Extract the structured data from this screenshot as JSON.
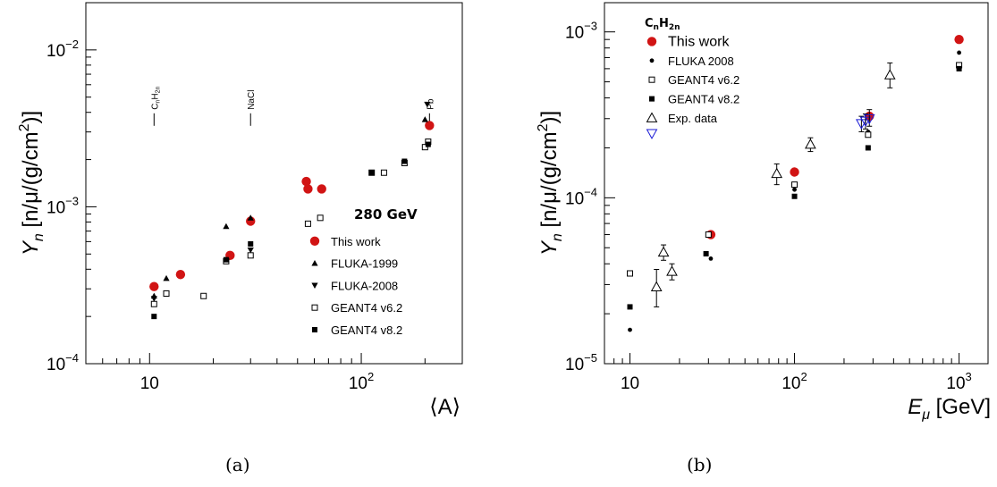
{
  "chart_data": [
    {
      "type": "scatter",
      "panel": "a",
      "caption": "(a)",
      "x_scale": "log",
      "y_scale": "log",
      "xlim": [
        5,
        300
      ],
      "ylim": [
        0.0001,
        0.02
      ],
      "grid": false,
      "xlabel": "⟨A⟩",
      "ylabel": "Y_n [n/μ/(g/cm²)]",
      "ylabel_parts": {
        "Y": "Y",
        "sub": "n",
        "rest": " [n/μ/(g/cm",
        "sup": "2",
        "tail": ")]"
      },
      "x_ticks": [
        {
          "value": 10,
          "label": "10"
        },
        {
          "value": 100,
          "label": "10",
          "exp": "2"
        }
      ],
      "y_ticks": [
        {
          "value": 0.0001,
          "label": "10",
          "exp": "−4"
        },
        {
          "value": 0.001,
          "label": "10",
          "exp": "−3"
        },
        {
          "value": 0.01,
          "label": "10",
          "exp": "−2"
        }
      ],
      "legend": {
        "title": "280 GeV",
        "placement": "lower-right",
        "entries": [
          {
            "label": "This work",
            "marker": "circle-red"
          },
          {
            "label": "FLUKA-1999",
            "marker": "triangle-up"
          },
          {
            "label": "FLUKA-2008",
            "marker": "triangle-down"
          },
          {
            "label": "GEANT4 v6.2",
            "marker": "square-open"
          },
          {
            "label": "GEANT4 v8.2",
            "marker": "square-filled"
          }
        ]
      },
      "annotations": [
        {
          "text": "C",
          "sub": "n",
          "text2": "H",
          "sub2": "2n",
          "x": 10.5,
          "y": 0.006
        },
        {
          "text": "NaCl",
          "x": 30,
          "y": 0.006
        },
        {
          "text": "Pb",
          "x": 210,
          "y": 0.006
        }
      ],
      "series": [
        {
          "name": "This work",
          "marker": "circle-red",
          "points": [
            [
              10.5,
              0.00031
            ],
            [
              14,
              0.00037
            ],
            [
              24,
              0.00049
            ],
            [
              30,
              0.00081
            ],
            [
              55,
              0.00145
            ],
            [
              56,
              0.0013
            ],
            [
              65,
              0.0013
            ],
            [
              210,
              0.0033
            ]
          ]
        },
        {
          "name": "FLUKA-1999",
          "marker": "triangle-up",
          "points": [
            [
              10.5,
              0.00027
            ],
            [
              12,
              0.00035
            ],
            [
              23,
              0.00075
            ],
            [
              30,
              0.00085
            ],
            [
              200,
              0.0036
            ]
          ]
        },
        {
          "name": "FLUKA-2008",
          "marker": "triangle-down",
          "points": [
            [
              10.5,
              0.00026
            ],
            [
              30,
              0.00053
            ],
            [
              205,
              0.0045
            ]
          ]
        },
        {
          "name": "GEANT4 v6.2",
          "marker": "square-open",
          "points": [
            [
              10.5,
              0.00024
            ],
            [
              12,
              0.00028
            ],
            [
              18,
              0.00027
            ],
            [
              23,
              0.00045
            ],
            [
              30,
              0.00049
            ],
            [
              56,
              0.00078
            ],
            [
              64,
              0.00085
            ],
            [
              112,
              0.00165
            ],
            [
              128,
              0.00165
            ],
            [
              160,
              0.0019
            ],
            [
              200,
              0.0024
            ],
            [
              207,
              0.0026
            ]
          ]
        },
        {
          "name": "GEANT4 v8.2",
          "marker": "square-filled",
          "points": [
            [
              10.5,
              0.0002
            ],
            [
              23,
              0.00046
            ],
            [
              30,
              0.00058
            ],
            [
              112,
              0.00165
            ],
            [
              160,
              0.00195
            ],
            [
              207,
              0.0025
            ]
          ]
        }
      ]
    },
    {
      "type": "scatter",
      "panel": "b",
      "caption": "(b)",
      "x_scale": "log",
      "y_scale": "log",
      "xlim": [
        7,
        1500
      ],
      "ylim": [
        1e-05,
        0.0015
      ],
      "grid": false,
      "xlabel": "E_μ [GeV]",
      "xlabel_parts": {
        "E": "E",
        "sub": "μ",
        "rest": " [GeV]"
      },
      "ylabel": "Y_n [n/μ/(g/cm²)]",
      "ylabel_parts": {
        "Y": "Y",
        "sub": "n",
        "rest": " [n/μ/(g/cm",
        "sup": "2",
        "tail": ")]"
      },
      "x_ticks": [
        {
          "value": 10,
          "label": "10"
        },
        {
          "value": 100,
          "label": "10",
          "exp": "2"
        },
        {
          "value": 1000,
          "label": "10",
          "exp": "3"
        }
      ],
      "y_ticks": [
        {
          "value": 1e-05,
          "label": "10",
          "exp": "−5"
        },
        {
          "value": 0.0001,
          "label": "10",
          "exp": "−4"
        },
        {
          "value": 0.001,
          "label": "10",
          "exp": "−3"
        }
      ],
      "legend": {
        "title": "C",
        "title_sub": "n",
        "title2": "H",
        "title_sub2": "2n",
        "placement": "top-left",
        "entries": [
          {
            "label": "This work",
            "marker": "circle-red"
          },
          {
            "label": "FLUKA 2008",
            "marker": "dot"
          },
          {
            "label": "GEANT4 v6.2",
            "marker": "square-open"
          },
          {
            "label": "GEANT4 v8.2",
            "marker": "square-filled"
          },
          {
            "label": "Exp. data",
            "marker": "triangle-open"
          },
          {
            "label": "",
            "marker": "triangle-down-blue"
          }
        ]
      },
      "series": [
        {
          "name": "This work",
          "marker": "circle-red",
          "points": [
            [
              31,
              6e-05
            ],
            [
              100,
              0.000143
            ],
            [
              285,
              0.00031
            ],
            [
              1000,
              0.0009
            ]
          ]
        },
        {
          "name": "FLUKA 2008",
          "marker": "dot",
          "points": [
            [
              10,
              1.6e-05
            ],
            [
              31,
              4.3e-05
            ],
            [
              100,
              0.000112
            ],
            [
              280,
              0.00025
            ],
            [
              1000,
              0.00075
            ]
          ]
        },
        {
          "name": "GEANT4 v6.2",
          "marker": "square-open",
          "points": [
            [
              10,
              3.5e-05
            ],
            [
              30,
              6e-05
            ],
            [
              100,
              0.00012
            ],
            [
              280,
              0.00024
            ],
            [
              1000,
              0.00063
            ]
          ]
        },
        {
          "name": "GEANT4 v8.2",
          "marker": "square-filled",
          "points": [
            [
              10,
              2.2e-05
            ],
            [
              29,
              4.6e-05
            ],
            [
              100,
              0.000102
            ],
            [
              280,
              0.0002
            ],
            [
              1000,
              0.0006
            ]
          ]
        },
        {
          "name": "Exp. data",
          "marker": "triangle-open",
          "points": [
            [
              14.5,
              2.9e-05,
              2.2e-05,
              3.7e-05
            ],
            [
              16,
              4.7e-05,
              4.2e-05,
              5.2e-05
            ],
            [
              18,
              3.6e-05,
              3.2e-05,
              4e-05
            ],
            [
              78,
              0.00014,
              0.00012,
              0.00016
            ],
            [
              125,
              0.00021,
              0.00019,
              0.00023
            ],
            [
              380,
              0.00055,
              0.00046,
              0.00065
            ]
          ]
        },
        {
          "name": "Exp. data",
          "marker": "triangle-down-blue",
          "points": [
            [
              255,
              0.00028,
              0.00025,
              0.00031
            ],
            [
              270,
              0.00029,
              0.00026,
              0.00032
            ],
            [
              285,
              0.0003,
              0.00027,
              0.00034
            ]
          ]
        }
      ]
    }
  ],
  "captions": {
    "a": "(a)",
    "b": "(b)"
  }
}
